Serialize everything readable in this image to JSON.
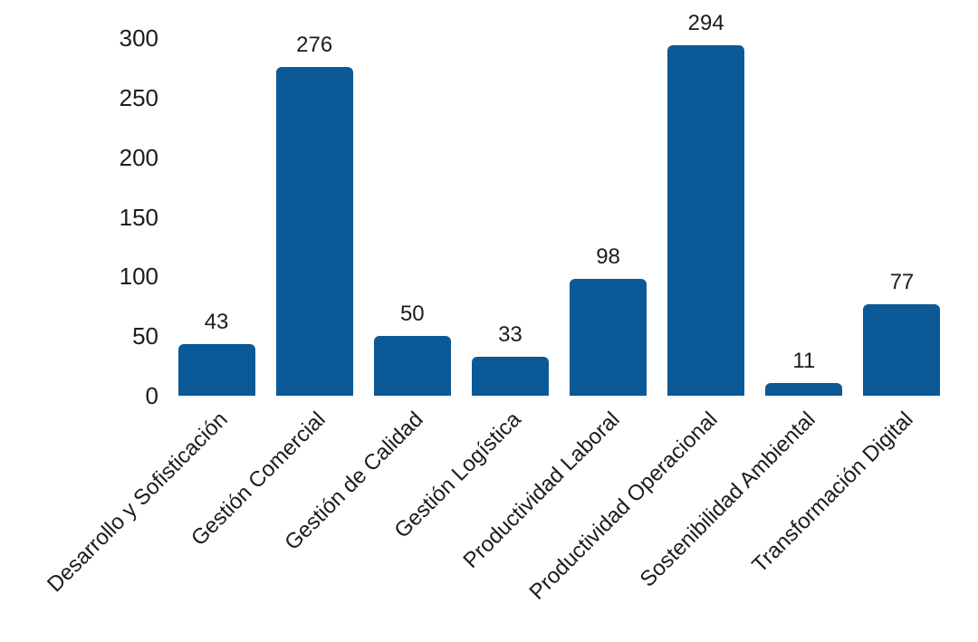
{
  "chart_data": {
    "type": "bar",
    "title": "",
    "xlabel": "",
    "ylabel": "",
    "categories": [
      "Desarrollo y Sofisticación",
      "Gestión Comercial",
      "Gestión de Calidad",
      "Gestión Logística",
      "Productividad Laboral",
      "Productividad Operacional",
      "Sostenibilidad Ambiental",
      "Transformación Digital"
    ],
    "values": [
      43,
      276,
      50,
      33,
      98,
      294,
      11,
      77
    ],
    "ylim": [
      0,
      300
    ],
    "yticks": [
      0,
      50,
      100,
      150,
      200,
      250,
      300
    ],
    "grid": false,
    "legend_position": "none",
    "bar_color": "#0b5996",
    "text_color": "#1c1c1c",
    "background_color": "#ffffff"
  }
}
